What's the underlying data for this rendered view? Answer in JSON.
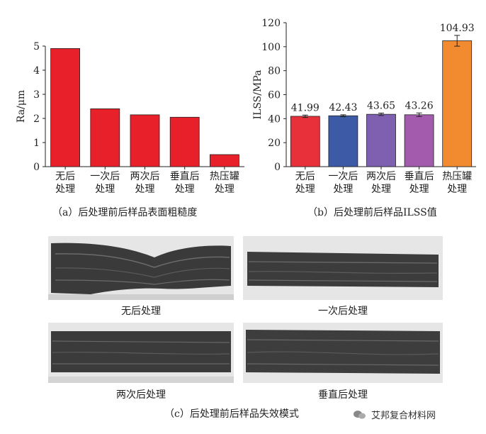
{
  "chart_data": [
    {
      "type": "bar",
      "ylabel": "Ra/μm",
      "ylim": [
        0,
        5
      ],
      "yticks": [
        0,
        1,
        2,
        3,
        4,
        5
      ],
      "categories": [
        [
          "无后",
          "处理"
        ],
        [
          "一次后",
          "处理"
        ],
        [
          "两次后",
          "处理"
        ],
        [
          "垂直后",
          "处理"
        ],
        [
          "热压罐",
          "处理"
        ]
      ],
      "values": [
        4.9,
        2.4,
        2.15,
        2.05,
        0.5
      ],
      "colors": [
        "#e8202a",
        "#e8202a",
        "#e8202a",
        "#e8202a",
        "#e8202a"
      ],
      "caption": "（a）后处理前后样品表面粗糙度"
    },
    {
      "type": "bar",
      "ylabel": "ILSS/MPa",
      "ylim": [
        0,
        120
      ],
      "yticks": [
        0,
        20,
        40,
        60,
        80,
        100,
        120
      ],
      "categories": [
        [
          "无后",
          "处理"
        ],
        [
          "一次后",
          "处理"
        ],
        [
          "两次后",
          "处理"
        ],
        [
          "垂直后",
          "处理"
        ],
        [
          "热压罐",
          "处理"
        ]
      ],
      "values": [
        41.99,
        42.43,
        43.65,
        43.26,
        104.93
      ],
      "value_labels": [
        "41.99",
        "42.43",
        "43.65",
        "43.26",
        "104.93"
      ],
      "errors": [
        1.0,
        0.8,
        1.0,
        1.5,
        4.5
      ],
      "colors": [
        "#e8303a",
        "#3c5aa6",
        "#7e5fb0",
        "#a35bad",
        "#f28a30"
      ],
      "caption": "（b）后处理前后样品ILSS值"
    }
  ],
  "photos": {
    "caption": "（c）后处理前后样品失效模式",
    "items": [
      {
        "label": "无后处理"
      },
      {
        "label": "一次后处理"
      },
      {
        "label": "两次后处理"
      },
      {
        "label": "垂直后处理"
      }
    ]
  },
  "watermark": {
    "text": "艾邦复合材料网",
    "icon": "wechat-icon"
  }
}
